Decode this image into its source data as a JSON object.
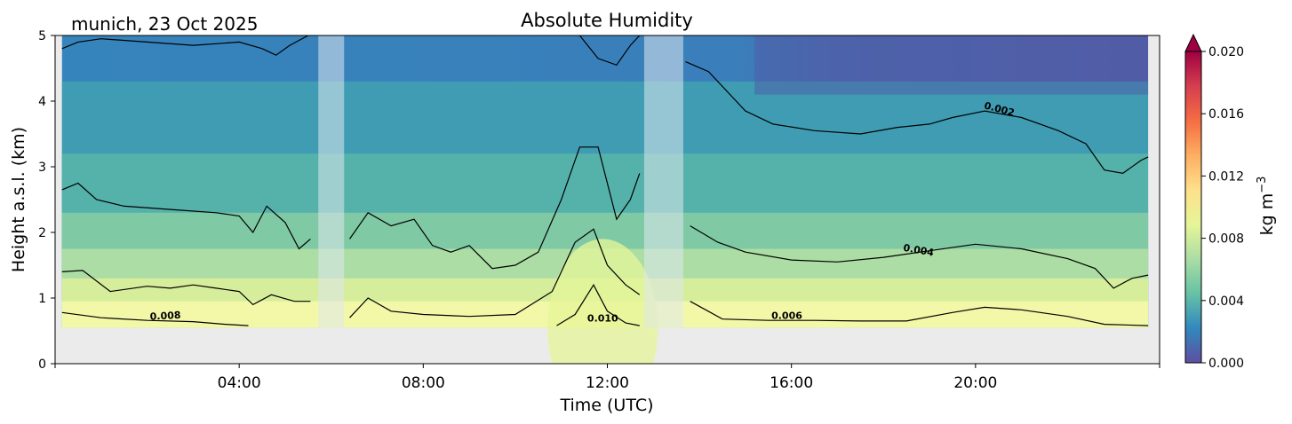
{
  "chart_data": {
    "type": "contourf",
    "title": "Absolute Humidity",
    "site_date": "munich, 23 Oct 2025",
    "xlabel": "Time (UTC)",
    "ylabel": "Height a.s.l. (km)",
    "x_tick_labels": [
      "04:00",
      "08:00",
      "12:00",
      "16:00",
      "20:00"
    ],
    "x_ticks_hours": [
      4,
      8,
      12,
      16,
      20
    ],
    "xlim_hours": [
      0,
      24
    ],
    "y_tick_labels": [
      "0",
      "1",
      "2",
      "3",
      "4",
      "5"
    ],
    "ylim_km": [
      0,
      5
    ],
    "data_bottom_km": 0.55,
    "colorbar": {
      "label": "kg m",
      "label_exponent": "−3",
      "tick_labels": [
        "0.000",
        "0.004",
        "0.008",
        "0.012",
        "0.016",
        "0.020"
      ],
      "range": [
        0,
        0.02
      ],
      "extend": "max",
      "colormap": "Spectral_r"
    },
    "contour_labels": [
      "0.008",
      "0.010",
      "0.006",
      "0.004",
      "0.002"
    ],
    "gaps_hours": [
      [
        5.72,
        6.28
      ],
      [
        12.8,
        13.65
      ]
    ],
    "contour_lines": [
      {
        "level": 0.002,
        "points": [
          [
            0.15,
            4.8
          ],
          [
            0.5,
            4.9
          ],
          [
            1,
            4.95
          ],
          [
            2,
            4.9
          ],
          [
            3,
            4.85
          ],
          [
            4,
            4.9
          ],
          [
            4.5,
            4.8
          ],
          [
            4.8,
            4.7
          ],
          [
            5.1,
            4.85
          ],
          [
            5.5,
            5
          ]
        ]
      },
      {
        "level": 0.002,
        "points": [
          [
            11.4,
            5
          ],
          [
            11.8,
            4.65
          ],
          [
            12.2,
            4.55
          ],
          [
            12.5,
            4.85
          ],
          [
            12.7,
            5
          ]
        ]
      },
      {
        "level": 0.002,
        "points": [
          [
            13.7,
            4.6
          ],
          [
            14.2,
            4.45
          ],
          [
            15,
            3.85
          ],
          [
            15.6,
            3.65
          ],
          [
            16.5,
            3.55
          ],
          [
            17.5,
            3.5
          ],
          [
            18.3,
            3.6
          ],
          [
            19,
            3.65
          ],
          [
            19.5,
            3.75
          ],
          [
            20.2,
            3.85
          ],
          [
            21,
            3.75
          ],
          [
            21.8,
            3.55
          ],
          [
            22.4,
            3.35
          ],
          [
            22.8,
            2.95
          ],
          [
            23.2,
            2.9
          ],
          [
            23.6,
            3.1
          ],
          [
            23.75,
            3.15
          ]
        ]
      },
      {
        "level": 0.004,
        "points": [
          [
            0.15,
            2.65
          ],
          [
            0.5,
            2.75
          ],
          [
            0.9,
            2.5
          ],
          [
            1.5,
            2.4
          ],
          [
            2.5,
            2.35
          ],
          [
            3.5,
            2.3
          ],
          [
            4,
            2.25
          ],
          [
            4.3,
            2.0
          ],
          [
            4.6,
            2.4
          ],
          [
            5,
            2.15
          ],
          [
            5.3,
            1.75
          ],
          [
            5.55,
            1.9
          ]
        ]
      },
      {
        "level": 0.004,
        "points": [
          [
            6.4,
            1.9
          ],
          [
            6.8,
            2.3
          ],
          [
            7.3,
            2.1
          ],
          [
            7.8,
            2.2
          ],
          [
            8.2,
            1.8
          ],
          [
            8.6,
            1.7
          ],
          [
            9,
            1.8
          ],
          [
            9.5,
            1.45
          ],
          [
            10,
            1.5
          ],
          [
            10.5,
            1.7
          ],
          [
            11,
            2.5
          ],
          [
            11.4,
            3.3
          ],
          [
            11.8,
            3.3
          ],
          [
            12.2,
            2.2
          ],
          [
            12.5,
            2.5
          ],
          [
            12.7,
            2.9
          ]
        ]
      },
      {
        "level": 0.004,
        "points": [
          [
            13.8,
            2.1
          ],
          [
            14.4,
            1.85
          ],
          [
            15,
            1.7
          ],
          [
            16,
            1.58
          ],
          [
            17,
            1.55
          ],
          [
            18,
            1.62
          ],
          [
            19,
            1.72
          ],
          [
            20,
            1.82
          ],
          [
            21,
            1.75
          ],
          [
            22,
            1.6
          ],
          [
            22.6,
            1.45
          ],
          [
            23,
            1.15
          ],
          [
            23.4,
            1.3
          ],
          [
            23.75,
            1.35
          ]
        ]
      },
      {
        "level": 0.006,
        "points": [
          [
            0.15,
            1.4
          ],
          [
            0.6,
            1.42
          ],
          [
            1.2,
            1.1
          ],
          [
            2,
            1.18
          ],
          [
            2.5,
            1.15
          ],
          [
            3,
            1.2
          ],
          [
            3.5,
            1.15
          ],
          [
            4,
            1.1
          ],
          [
            4.3,
            0.9
          ],
          [
            4.7,
            1.05
          ],
          [
            5.2,
            0.95
          ],
          [
            5.55,
            0.95
          ]
        ]
      },
      {
        "level": 0.006,
        "points": [
          [
            6.4,
            0.7
          ],
          [
            6.8,
            1.0
          ],
          [
            7.3,
            0.8
          ],
          [
            8,
            0.75
          ],
          [
            9,
            0.72
          ],
          [
            10,
            0.75
          ],
          [
            10.8,
            1.1
          ],
          [
            11.3,
            1.85
          ],
          [
            11.7,
            2.05
          ],
          [
            12,
            1.5
          ],
          [
            12.4,
            1.2
          ],
          [
            12.7,
            1.05
          ]
        ]
      },
      {
        "level": 0.006,
        "points": [
          [
            13.8,
            0.95
          ],
          [
            14.5,
            0.68
          ],
          [
            15.5,
            0.66
          ],
          [
            16.5,
            0.66
          ],
          [
            17.5,
            0.65
          ],
          [
            18.5,
            0.65
          ],
          [
            19.5,
            0.78
          ],
          [
            20.2,
            0.86
          ],
          [
            21,
            0.82
          ],
          [
            22,
            0.72
          ],
          [
            22.8,
            0.6
          ],
          [
            23.75,
            0.58
          ]
        ]
      },
      {
        "level": 0.008,
        "points": [
          [
            0.15,
            0.78
          ],
          [
            1,
            0.7
          ],
          [
            2,
            0.66
          ],
          [
            3,
            0.64
          ],
          [
            3.7,
            0.6
          ],
          [
            4.2,
            0.58
          ]
        ]
      },
      {
        "level": 0.008,
        "points": [
          [
            10.9,
            0.58
          ],
          [
            11.3,
            0.75
          ],
          [
            11.7,
            1.2
          ],
          [
            12,
            0.8
          ],
          [
            12.4,
            0.62
          ],
          [
            12.7,
            0.58
          ]
        ]
      }
    ],
    "fill_bands": [
      {
        "ceiling_km": 0.95,
        "color": "#f3f8a9"
      },
      {
        "ceiling_km": 1.3,
        "color": "#d6ee9b"
      },
      {
        "ceiling_km": 1.75,
        "color": "#abdda4"
      },
      {
        "ceiling_km": 2.3,
        "color": "#7fc9a5"
      },
      {
        "ceiling_km": 3.2,
        "color": "#55b2aa"
      },
      {
        "ceiling_km": 4.3,
        "color": "#3f9cb3"
      },
      {
        "ceiling_km": 5,
        "color": "#3584bb"
      }
    ],
    "annotations": [
      {
        "text": "0.008",
        "x_hours": 2.4,
        "y_km": 0.68,
        "rotation": -3
      },
      {
        "text": "0.010",
        "x_hours": 11.9,
        "y_km": 0.64,
        "rotation": 0
      },
      {
        "text": "0.006",
        "x_hours": 15.9,
        "y_km": 0.68,
        "rotation": 0
      },
      {
        "text": "0.004",
        "x_hours": 18.75,
        "y_km": 1.68,
        "rotation": 10
      },
      {
        "text": "0.002",
        "x_hours": 20.5,
        "y_km": 3.83,
        "rotation": 15
      }
    ]
  },
  "colors": {
    "low_band_bg": "#ebebeb",
    "gap_fill": "#dfe7ef",
    "contour_line": "#000000",
    "colorbar_stops": [
      "#5e4fa2",
      "#3288bd",
      "#66c2a5",
      "#abdda4",
      "#e6f598",
      "#fee08b",
      "#fdae61",
      "#f46d43",
      "#d53e4f",
      "#9e0142"
    ]
  }
}
